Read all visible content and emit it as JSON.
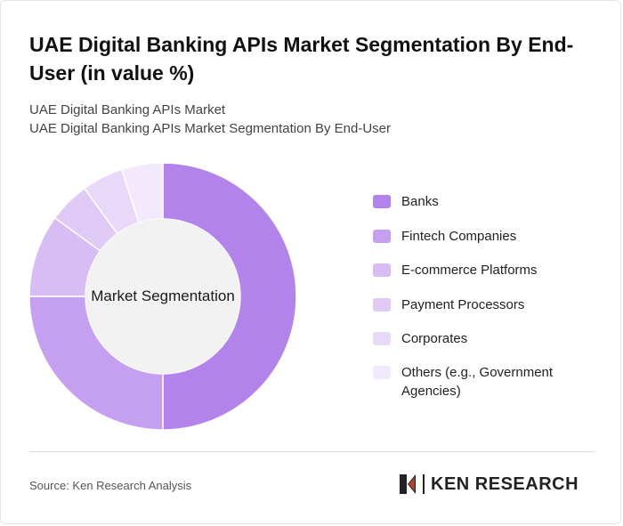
{
  "header": {
    "title": "UAE Digital Banking APIs Market Segmentation By End-User (in value %)",
    "subtitle_1": "UAE Digital Banking APIs Market",
    "subtitle_2": "UAE Digital Banking APIs Market Segmentation By End-User"
  },
  "chart_data": {
    "type": "pie",
    "donut": true,
    "center_label": "Market Segmentation",
    "categories": [
      "Banks",
      "Fintech Companies",
      "E-commerce Platforms",
      "Payment Processors",
      "Corporates",
      "Others (e.g., Government Agencies)"
    ],
    "values": [
      50,
      25,
      10,
      5,
      5,
      5
    ],
    "colors": [
      "#b383ec",
      "#c59ff0",
      "#d7bdf4",
      "#dfcaf6",
      "#e8d9f9",
      "#f2eafc"
    ],
    "legend_position": "right"
  },
  "footer": {
    "source": "Source: Ken Research Analysis",
    "logo_text": "KEN RESEARCH"
  }
}
